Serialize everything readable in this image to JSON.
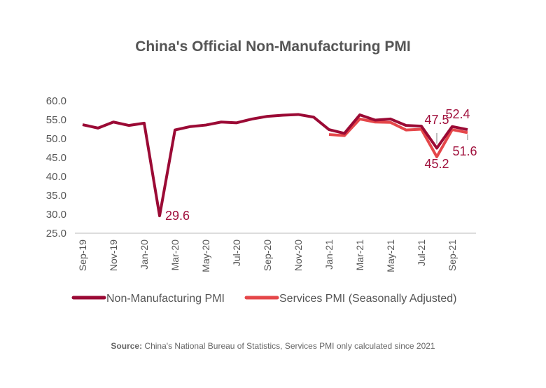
{
  "chart_data": {
    "type": "line",
    "title": "China's Official Non-Manufacturing PMI",
    "x": [
      "Sep-19",
      "Oct-19",
      "Nov-19",
      "Dec-19",
      "Jan-20",
      "Feb-20",
      "Mar-20",
      "Apr-20",
      "May-20",
      "Jun-20",
      "Jul-20",
      "Aug-20",
      "Sep-20",
      "Oct-20",
      "Nov-20",
      "Dec-20",
      "Jan-21",
      "Feb-21",
      "Mar-21",
      "Apr-21",
      "May-21",
      "Jun-21",
      "Jul-21",
      "Aug-21",
      "Sep-21",
      "Oct-21"
    ],
    "tick_labels": [
      "Sep-19",
      "Nov-19",
      "Jan-20",
      "Mar-20",
      "May-20",
      "Jul-20",
      "Sep-20",
      "Nov-20",
      "Jan-21",
      "Mar-21",
      "May-21",
      "Jul-21",
      "Sep-21"
    ],
    "ylim": [
      25,
      60
    ],
    "yticks": [
      "25.0",
      "30.0",
      "35.0",
      "40.0",
      "45.0",
      "50.0",
      "55.0",
      "60.0"
    ],
    "grid": false,
    "legend_placement": "bottom",
    "series": [
      {
        "name": "Non-Manufacturing PMI",
        "color": "#9b0a35",
        "values": [
          53.7,
          52.8,
          54.4,
          53.5,
          54.1,
          29.6,
          52.3,
          53.2,
          53.6,
          54.4,
          54.2,
          55.2,
          55.9,
          56.2,
          56.4,
          55.7,
          52.4,
          51.4,
          56.3,
          54.9,
          55.2,
          53.5,
          53.3,
          47.5,
          53.2,
          52.4
        ]
      },
      {
        "name": "Services PMI (Seasonally Adjusted)",
        "color": "#e5474a",
        "values": [
          null,
          null,
          null,
          null,
          null,
          null,
          null,
          null,
          null,
          null,
          null,
          null,
          null,
          null,
          null,
          null,
          51.1,
          50.8,
          55.2,
          54.4,
          54.3,
          52.3,
          52.5,
          45.2,
          52.4,
          51.6
        ]
      }
    ],
    "annotations": [
      {
        "text": "29.6",
        "index": 5
      },
      {
        "text": "47.5",
        "index": 23
      },
      {
        "text": "45.2",
        "index": 23
      },
      {
        "text": "52.4",
        "index": 25
      },
      {
        "text": "51.6",
        "index": 25
      }
    ]
  },
  "source": {
    "label": "Source:",
    "text": " China's National Bureau of Statistics, Services PMI only calculated since 2021"
  }
}
